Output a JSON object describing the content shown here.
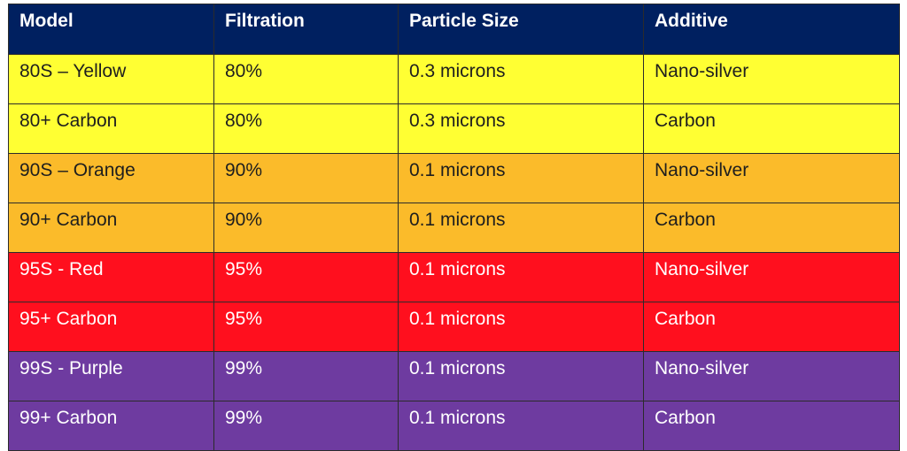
{
  "table": {
    "headers": [
      "Model",
      "Filtration",
      "Particle Size",
      "Additive"
    ],
    "rows": [
      {
        "color": "yellow",
        "cells": [
          "80S – Yellow",
          "80%",
          "0.3 microns",
          "Nano-silver"
        ]
      },
      {
        "color": "yellow",
        "cells": [
          "80+ Carbon",
          "80%",
          "0.3 microns",
          "Carbon"
        ]
      },
      {
        "color": "orange",
        "cells": [
          "90S – Orange",
          "90%",
          "0.1 microns",
          "Nano-silver"
        ]
      },
      {
        "color": "orange",
        "cells": [
          "90+ Carbon",
          "90%",
          "0.1 microns",
          "Carbon"
        ]
      },
      {
        "color": "red",
        "cells": [
          "95S - Red",
          "95%",
          "0.1 microns",
          "Nano-silver"
        ]
      },
      {
        "color": "red",
        "cells": [
          "95+ Carbon",
          "95%",
          "0.1 microns",
          "Carbon"
        ]
      },
      {
        "color": "purple",
        "cells": [
          "99S - Purple",
          "99%",
          "0.1 microns",
          "Nano-silver"
        ]
      },
      {
        "color": "purple",
        "cells": [
          "99+ Carbon",
          "99%",
          "0.1 microns",
          "Carbon"
        ]
      }
    ]
  },
  "colors": {
    "header": "#002060",
    "yellow": "#ffff33",
    "orange": "#fbbb2a",
    "red": "#ff0f1e",
    "purple": "#6e3ba0"
  }
}
